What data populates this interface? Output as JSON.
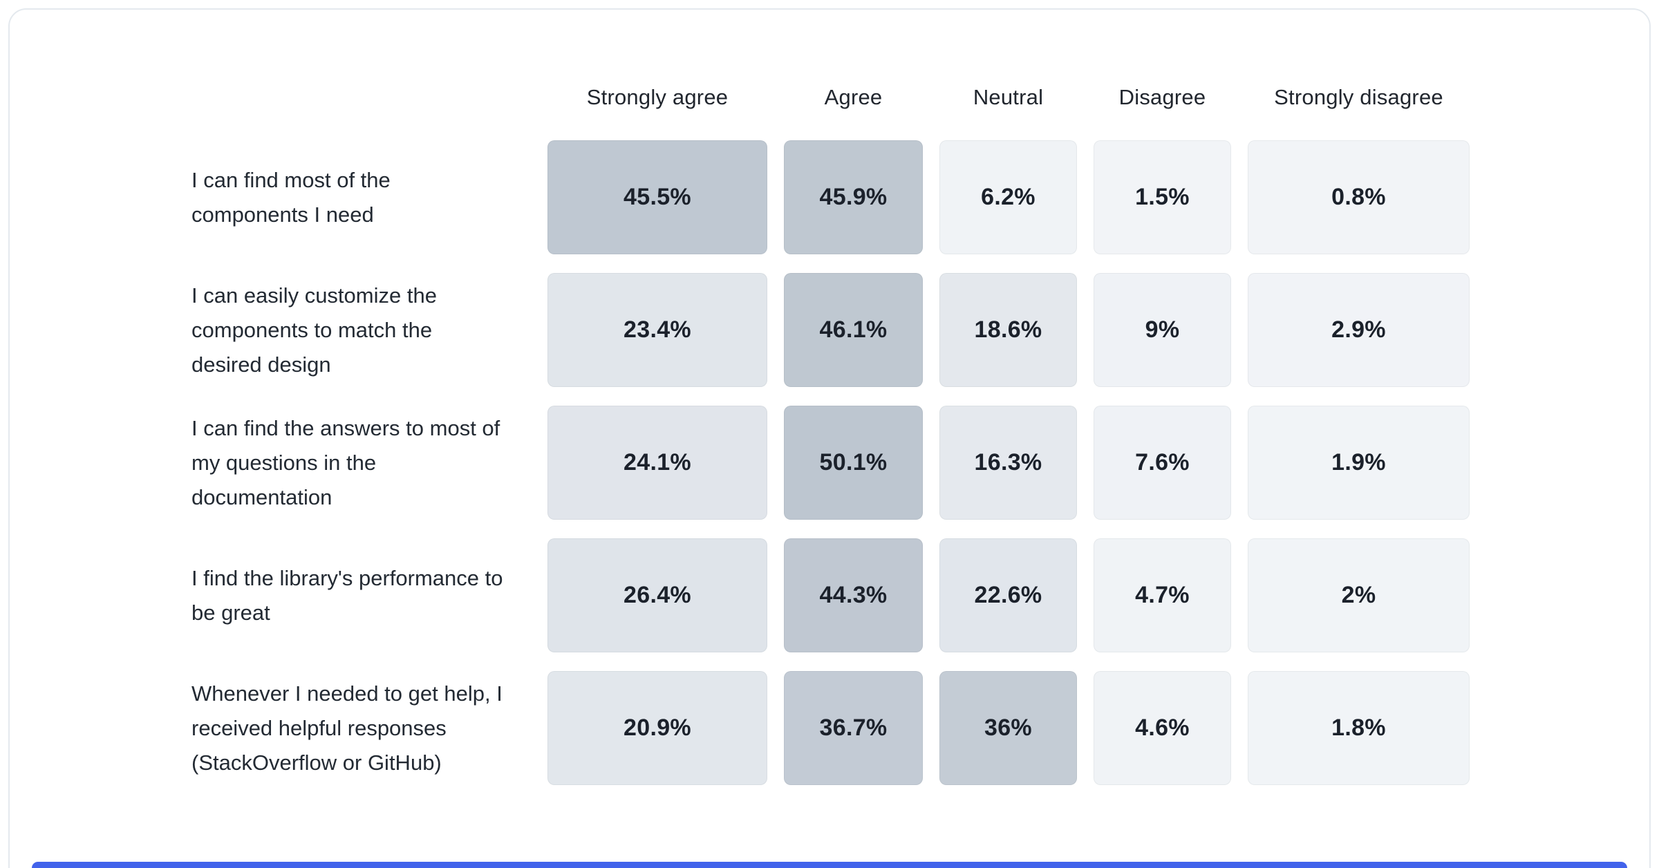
{
  "chart_data": {
    "type": "heatmap",
    "title": "",
    "columns": [
      "Strongly agree",
      "Agree",
      "Neutral",
      "Disagree",
      "Strongly disagree"
    ],
    "rows": [
      {
        "label": "I can find most of the components I need",
        "values": [
          45.5,
          45.9,
          6.2,
          1.5,
          0.8
        ],
        "labels": [
          "45.5%",
          "45.9%",
          "6.2%",
          "1.5%",
          "0.8%"
        ]
      },
      {
        "label": "I can easily customize the components to match the desired design",
        "values": [
          23.4,
          46.1,
          18.6,
          9,
          2.9
        ],
        "labels": [
          "23.4%",
          "46.1%",
          "18.6%",
          "9%",
          "2.9%"
        ]
      },
      {
        "label": "I can find the answers to most of my questions in the documentation",
        "values": [
          24.1,
          50.1,
          16.3,
          7.6,
          1.9
        ],
        "labels": [
          "24.1%",
          "50.1%",
          "16.3%",
          "7.6%",
          "1.9%"
        ]
      },
      {
        "label": "I find the library's performance to be great",
        "values": [
          26.4,
          44.3,
          22.6,
          4.7,
          2
        ],
        "labels": [
          "26.4%",
          "44.3%",
          "22.6%",
          "4.7%",
          "2%"
        ]
      },
      {
        "label": "Whenever I needed to get help, I received helpful responses (StackOverflow or GitHub)",
        "values": [
          20.9,
          36.7,
          36,
          4.6,
          1.8
        ],
        "labels": [
          "20.9%",
          "36.7%",
          "36%",
          "4.6%",
          "1.8%"
        ]
      }
    ],
    "value_range": [
      0,
      50
    ],
    "grid": false,
    "legend_position": "none"
  },
  "theme": {
    "card_background": "#ffffff",
    "card_border": "#e4e9ee",
    "accent_bar_color": "#4263eb",
    "header_text_color": "#21262e",
    "label_text_color": "#232a33",
    "cell_text_color": "#1b212b",
    "heat_stops": [
      [
        0,
        "#f2f4f7"
      ],
      [
        9,
        "#eff2f6"
      ],
      [
        16,
        "#e5e9ee"
      ],
      [
        27,
        "#dfe4ea"
      ],
      [
        33,
        "#c5cdd6"
      ],
      [
        50,
        "#bdc6d0"
      ]
    ]
  }
}
